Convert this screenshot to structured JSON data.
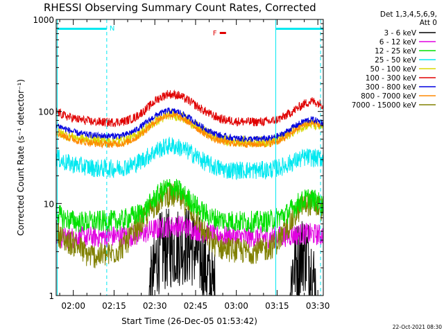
{
  "chart_data": {
    "type": "line",
    "title": "RHESSI Observing Summary Count Rates, Corrected",
    "xlabel": "Start Time (26-Dec-05 01:53:42)",
    "ylabel": "Corrected Count Rate (s⁻¹ detector⁻¹)",
    "yscale": "log",
    "ylim": [
      1,
      1000
    ],
    "xlim_minutes": [
      0,
      98.3
    ],
    "x_ticks": [
      {
        "label": "02:00",
        "minute": 6.3
      },
      {
        "label": "02:15",
        "minute": 21.3
      },
      {
        "label": "02:30",
        "minute": 36.3
      },
      {
        "label": "02:45",
        "minute": 51.3
      },
      {
        "label": "03:00",
        "minute": 66.3
      },
      {
        "label": "03:15",
        "minute": 81.3
      },
      {
        "label": "03:30",
        "minute": 96.3
      }
    ],
    "y_ticks": [
      {
        "label": "1",
        "value": 1
      },
      {
        "label": "10",
        "value": 10
      },
      {
        "label": "100",
        "value": 100
      },
      {
        "label": "1000",
        "value": 1000
      }
    ],
    "legend_header": [
      "Det 1,3,4,5,6,9,",
      "Att 0"
    ],
    "series": [
      {
        "name": "3 - 6 keV",
        "color": "#000000",
        "points": [
          [
            0,
            1
          ],
          [
            34,
            1
          ],
          [
            36,
            1.6
          ],
          [
            37,
            2.8
          ],
          [
            41,
            3.2
          ],
          [
            44,
            3.4
          ],
          [
            47,
            3.6
          ],
          [
            50,
            3.4
          ],
          [
            53,
            2.6
          ],
          [
            55,
            2.0
          ],
          [
            57,
            1.4
          ],
          [
            59,
            1
          ],
          [
            86,
            1
          ],
          [
            87,
            2.0
          ],
          [
            89,
            2.4
          ],
          [
            91,
            3.0
          ],
          [
            93,
            2.6
          ],
          [
            96,
            1
          ],
          [
            98.3,
            1
          ]
        ]
      },
      {
        "name": "6 - 12 keV",
        "color": "#e000e0",
        "points": [
          [
            0,
            4.2
          ],
          [
            10,
            4.3
          ],
          [
            20,
            4.4
          ],
          [
            30,
            4.5
          ],
          [
            36,
            5.2
          ],
          [
            41,
            5.6
          ],
          [
            46,
            5.7
          ],
          [
            51,
            5.2
          ],
          [
            56,
            4.7
          ],
          [
            62,
            4.4
          ],
          [
            70,
            4.3
          ],
          [
            80,
            4.3
          ],
          [
            86,
            4.5
          ],
          [
            91,
            4.7
          ],
          [
            96,
            4.6
          ],
          [
            98.3,
            4.5
          ]
        ]
      },
      {
        "name": "12 - 25 keV",
        "color": "#00e000",
        "points": [
          [
            0,
            8.5
          ],
          [
            2,
            7.0
          ],
          [
            8,
            6.3
          ],
          [
            16,
            6.4
          ],
          [
            24,
            6.5
          ],
          [
            32,
            8.0
          ],
          [
            37,
            12
          ],
          [
            41,
            15
          ],
          [
            45,
            14
          ],
          [
            49,
            11
          ],
          [
            53,
            8.5
          ],
          [
            57,
            7.0
          ],
          [
            63,
            6.5
          ],
          [
            70,
            6.3
          ],
          [
            78,
            6.4
          ],
          [
            85,
            7.8
          ],
          [
            89,
            10
          ],
          [
            93,
            11.5
          ],
          [
            96,
            10.5
          ],
          [
            98.3,
            9.5
          ]
        ]
      },
      {
        "name": "25 - 50 keV",
        "color": "#00e8f0",
        "points": [
          [
            0,
            32
          ],
          [
            3,
            28
          ],
          [
            8,
            26
          ],
          [
            15,
            24
          ],
          [
            22,
            24
          ],
          [
            28,
            26
          ],
          [
            32,
            30
          ],
          [
            37,
            38
          ],
          [
            42,
            43
          ],
          [
            46,
            40
          ],
          [
            50,
            35
          ],
          [
            54,
            29
          ],
          [
            58,
            25
          ],
          [
            63,
            23
          ],
          [
            70,
            23
          ],
          [
            78,
            23
          ],
          [
            83,
            25
          ],
          [
            88,
            29
          ],
          [
            92,
            32
          ],
          [
            96,
            31
          ],
          [
            98.3,
            31
          ]
        ]
      },
      {
        "name": "50 - 100 keV",
        "color": "#d8d800",
        "points": [
          [
            0,
            60
          ],
          [
            4,
            55
          ],
          [
            10,
            50
          ],
          [
            18,
            48
          ],
          [
            24,
            48
          ],
          [
            28,
            52
          ],
          [
            32,
            62
          ],
          [
            37,
            80
          ],
          [
            42,
            93
          ],
          [
            46,
            88
          ],
          [
            50,
            75
          ],
          [
            54,
            62
          ],
          [
            58,
            53
          ],
          [
            63,
            48
          ],
          [
            70,
            47
          ],
          [
            78,
            47
          ],
          [
            82,
            50
          ],
          [
            86,
            58
          ],
          [
            90,
            68
          ],
          [
            93,
            73
          ],
          [
            96,
            70
          ],
          [
            98.3,
            68
          ]
        ]
      },
      {
        "name": "100 - 300 keV",
        "color": "#e00000",
        "points": [
          [
            0,
            100
          ],
          [
            3,
            90
          ],
          [
            8,
            82
          ],
          [
            14,
            77
          ],
          [
            20,
            76
          ],
          [
            25,
            78
          ],
          [
            29,
            86
          ],
          [
            33,
            105
          ],
          [
            37,
            135
          ],
          [
            41,
            155
          ],
          [
            45,
            150
          ],
          [
            49,
            130
          ],
          [
            53,
            108
          ],
          [
            57,
            92
          ],
          [
            61,
            82
          ],
          [
            66,
            78
          ],
          [
            73,
            77
          ],
          [
            79,
            78
          ],
          [
            83,
            85
          ],
          [
            87,
            100
          ],
          [
            91,
            120
          ],
          [
            94,
            130
          ],
          [
            97,
            122
          ],
          [
            98.3,
            118
          ]
        ]
      },
      {
        "name": "300 - 800 keV",
        "color": "#0000e0",
        "points": [
          [
            0,
            72
          ],
          [
            3,
            65
          ],
          [
            8,
            58
          ],
          [
            14,
            55
          ],
          [
            20,
            54
          ],
          [
            25,
            55
          ],
          [
            29,
            62
          ],
          [
            33,
            75
          ],
          [
            37,
            92
          ],
          [
            41,
            102
          ],
          [
            45,
            99
          ],
          [
            49,
            85
          ],
          [
            53,
            70
          ],
          [
            57,
            60
          ],
          [
            61,
            54
          ],
          [
            66,
            51
          ],
          [
            73,
            50
          ],
          [
            79,
            51
          ],
          [
            83,
            56
          ],
          [
            87,
            67
          ],
          [
            91,
            78
          ],
          [
            94,
            82
          ],
          [
            97,
            78
          ],
          [
            98.3,
            75
          ]
        ]
      },
      {
        "name": "800 - 7000 keV",
        "color": "#ff8800",
        "points": [
          [
            0,
            60
          ],
          [
            3,
            54
          ],
          [
            8,
            48
          ],
          [
            14,
            45
          ],
          [
            20,
            44
          ],
          [
            25,
            45
          ],
          [
            29,
            51
          ],
          [
            33,
            63
          ],
          [
            37,
            80
          ],
          [
            41,
            92
          ],
          [
            45,
            89
          ],
          [
            49,
            76
          ],
          [
            53,
            62
          ],
          [
            57,
            52
          ],
          [
            61,
            47
          ],
          [
            66,
            45
          ],
          [
            73,
            44
          ],
          [
            79,
            45
          ],
          [
            83,
            49
          ],
          [
            87,
            60
          ],
          [
            91,
            72
          ],
          [
            94,
            76
          ],
          [
            97,
            72
          ],
          [
            98.3,
            70
          ]
        ]
      },
      {
        "name": "7000 - 15000 keV",
        "color": "#808000",
        "points": [
          [
            0,
            5.0
          ],
          [
            3,
            4.0
          ],
          [
            8,
            3.5
          ],
          [
            11,
            2.8
          ],
          [
            14,
            2.7
          ],
          [
            20,
            2.8
          ],
          [
            24,
            3.3
          ],
          [
            28,
            4.5
          ],
          [
            32,
            6.5
          ],
          [
            36,
            9.5
          ],
          [
            40,
            12.5
          ],
          [
            44,
            12
          ],
          [
            48,
            10
          ],
          [
            51,
            7.5
          ],
          [
            54,
            5
          ],
          [
            57,
            3.8
          ],
          [
            61,
            3.3
          ],
          [
            66,
            3.1
          ],
          [
            70,
            3.0
          ],
          [
            76,
            3.1
          ],
          [
            80,
            3.5
          ],
          [
            84,
            4.8
          ],
          [
            88,
            7.5
          ],
          [
            91,
            10
          ],
          [
            94,
            10
          ],
          [
            97,
            9
          ],
          [
            98.3,
            8.5
          ]
        ]
      }
    ],
    "vertical_markers_minutes": [
      0.4,
      18.6,
      80.8,
      97.3
    ],
    "flag_N": {
      "label": "N",
      "start_minute": 0.4,
      "end_minute": 18.6,
      "color": "#00e8f0"
    },
    "flag_N_after": {
      "start_minute": 80.8,
      "end_minute": 98.3,
      "color": "#00e8f0"
    },
    "flag_F": {
      "label": "F",
      "start_minute": 60.2,
      "end_minute": 62.5,
      "color": "#e00000"
    }
  },
  "footer_date": "22-Oct-2021 08:30"
}
